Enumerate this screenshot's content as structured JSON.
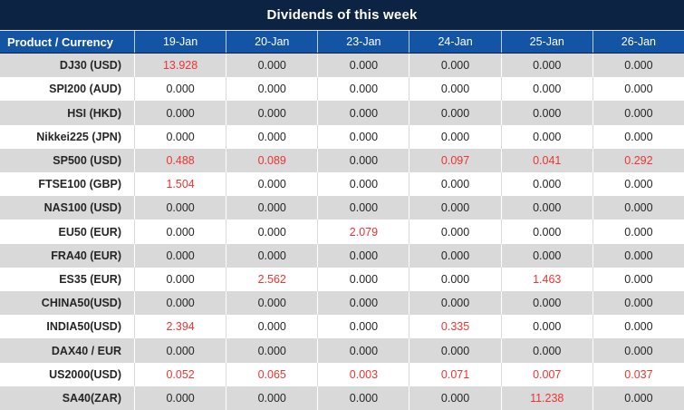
{
  "title": "Dividends of this week",
  "colors": {
    "title_bg": "#0d2343",
    "header_bg": "#1355a4",
    "header_text": "#ffffff",
    "row_alt_bg": "#d9d9d9",
    "row_bg": "#ffffff",
    "value_text": "#262626",
    "dividend_highlight": "#ee3333"
  },
  "table": {
    "product_header": "Product / Currency",
    "date_headers": [
      "19-Jan",
      "20-Jan",
      "23-Jan",
      "24-Jan",
      "25-Jan",
      "26-Jan"
    ],
    "rows": [
      {
        "product": "DJ30 (USD)",
        "values": [
          "13.928",
          "0.000",
          "0.000",
          "0.000",
          "0.000",
          "0.000"
        ],
        "red": [
          true,
          false,
          false,
          false,
          false,
          false
        ]
      },
      {
        "product": "SPI200 (AUD)",
        "values": [
          "0.000",
          "0.000",
          "0.000",
          "0.000",
          "0.000",
          "0.000"
        ],
        "red": [
          false,
          false,
          false,
          false,
          false,
          false
        ]
      },
      {
        "product": "HSI (HKD)",
        "values": [
          "0.000",
          "0.000",
          "0.000",
          "0.000",
          "0.000",
          "0.000"
        ],
        "red": [
          false,
          false,
          false,
          false,
          false,
          false
        ]
      },
      {
        "product": "Nikkei225 (JPN)",
        "values": [
          "0.000",
          "0.000",
          "0.000",
          "0.000",
          "0.000",
          "0.000"
        ],
        "red": [
          false,
          false,
          false,
          false,
          false,
          false
        ]
      },
      {
        "product": "SP500 (USD)",
        "values": [
          "0.488",
          "0.089",
          "0.000",
          "0.097",
          "0.041",
          "0.292"
        ],
        "red": [
          true,
          true,
          false,
          true,
          true,
          true
        ]
      },
      {
        "product": "FTSE100 (GBP)",
        "values": [
          "1.504",
          "0.000",
          "0.000",
          "0.000",
          "0.000",
          "0.000"
        ],
        "red": [
          true,
          false,
          false,
          false,
          false,
          false
        ]
      },
      {
        "product": "NAS100 (USD)",
        "values": [
          "0.000",
          "0.000",
          "0.000",
          "0.000",
          "0.000",
          "0.000"
        ],
        "red": [
          false,
          false,
          false,
          false,
          false,
          false
        ]
      },
      {
        "product": "EU50 (EUR)",
        "values": [
          "0.000",
          "0.000",
          "2.079",
          "0.000",
          "0.000",
          "0.000"
        ],
        "red": [
          false,
          false,
          true,
          false,
          false,
          false
        ]
      },
      {
        "product": "FRA40 (EUR)",
        "values": [
          "0.000",
          "0.000",
          "0.000",
          "0.000",
          "0.000",
          "0.000"
        ],
        "red": [
          false,
          false,
          false,
          false,
          false,
          false
        ]
      },
      {
        "product": "ES35 (EUR)",
        "values": [
          "0.000",
          "2.562",
          "0.000",
          "0.000",
          "1.463",
          "0.000"
        ],
        "red": [
          false,
          true,
          false,
          false,
          true,
          false
        ]
      },
      {
        "product": "CHINA50(USD)",
        "values": [
          "0.000",
          "0.000",
          "0.000",
          "0.000",
          "0.000",
          "0.000"
        ],
        "red": [
          false,
          false,
          false,
          false,
          false,
          false
        ]
      },
      {
        "product": "INDIA50(USD)",
        "values": [
          "2.394",
          "0.000",
          "0.000",
          "0.335",
          "0.000",
          "0.000"
        ],
        "red": [
          true,
          false,
          false,
          true,
          false,
          false
        ]
      },
      {
        "product": "DAX40 / EUR",
        "values": [
          "0.000",
          "0.000",
          "0.000",
          "0.000",
          "0.000",
          "0.000"
        ],
        "red": [
          false,
          false,
          false,
          false,
          false,
          false
        ]
      },
      {
        "product": "US2000(USD)",
        "values": [
          "0.052",
          "0.065",
          "0.003",
          "0.071",
          "0.007",
          "0.037"
        ],
        "red": [
          true,
          true,
          true,
          true,
          true,
          true
        ]
      },
      {
        "product": "SA40(ZAR)",
        "values": [
          "0.000",
          "0.000",
          "0.000",
          "0.000",
          "11.238",
          "0.000"
        ],
        "red": [
          false,
          false,
          false,
          false,
          true,
          false
        ]
      }
    ]
  },
  "chart_data": {
    "type": "table",
    "title": "Dividends of this week",
    "categories": [
      "19-Jan",
      "20-Jan",
      "23-Jan",
      "24-Jan",
      "25-Jan",
      "26-Jan"
    ],
    "series": [
      {
        "name": "DJ30 (USD)",
        "values": [
          13.928,
          0.0,
          0.0,
          0.0,
          0.0,
          0.0
        ]
      },
      {
        "name": "SPI200 (AUD)",
        "values": [
          0.0,
          0.0,
          0.0,
          0.0,
          0.0,
          0.0
        ]
      },
      {
        "name": "HSI (HKD)",
        "values": [
          0.0,
          0.0,
          0.0,
          0.0,
          0.0,
          0.0
        ]
      },
      {
        "name": "Nikkei225 (JPN)",
        "values": [
          0.0,
          0.0,
          0.0,
          0.0,
          0.0,
          0.0
        ]
      },
      {
        "name": "SP500 (USD)",
        "values": [
          0.488,
          0.089,
          0.0,
          0.097,
          0.041,
          0.292
        ]
      },
      {
        "name": "FTSE100 (GBP)",
        "values": [
          1.504,
          0.0,
          0.0,
          0.0,
          0.0,
          0.0
        ]
      },
      {
        "name": "NAS100 (USD)",
        "values": [
          0.0,
          0.0,
          0.0,
          0.0,
          0.0,
          0.0
        ]
      },
      {
        "name": "EU50 (EUR)",
        "values": [
          0.0,
          0.0,
          2.079,
          0.0,
          0.0,
          0.0
        ]
      },
      {
        "name": "FRA40 (EUR)",
        "values": [
          0.0,
          0.0,
          0.0,
          0.0,
          0.0,
          0.0
        ]
      },
      {
        "name": "ES35 (EUR)",
        "values": [
          0.0,
          2.562,
          0.0,
          0.0,
          1.463,
          0.0
        ]
      },
      {
        "name": "CHINA50(USD)",
        "values": [
          0.0,
          0.0,
          0.0,
          0.0,
          0.0,
          0.0
        ]
      },
      {
        "name": "INDIA50(USD)",
        "values": [
          2.394,
          0.0,
          0.0,
          0.335,
          0.0,
          0.0
        ]
      },
      {
        "name": "DAX40 / EUR",
        "values": [
          0.0,
          0.0,
          0.0,
          0.0,
          0.0,
          0.0
        ]
      },
      {
        "name": "US2000(USD)",
        "values": [
          0.052,
          0.065,
          0.003,
          0.071,
          0.007,
          0.037
        ]
      },
      {
        "name": "SA40(ZAR)",
        "values": [
          0.0,
          0.0,
          0.0,
          0.0,
          11.238,
          0.0
        ]
      }
    ]
  }
}
